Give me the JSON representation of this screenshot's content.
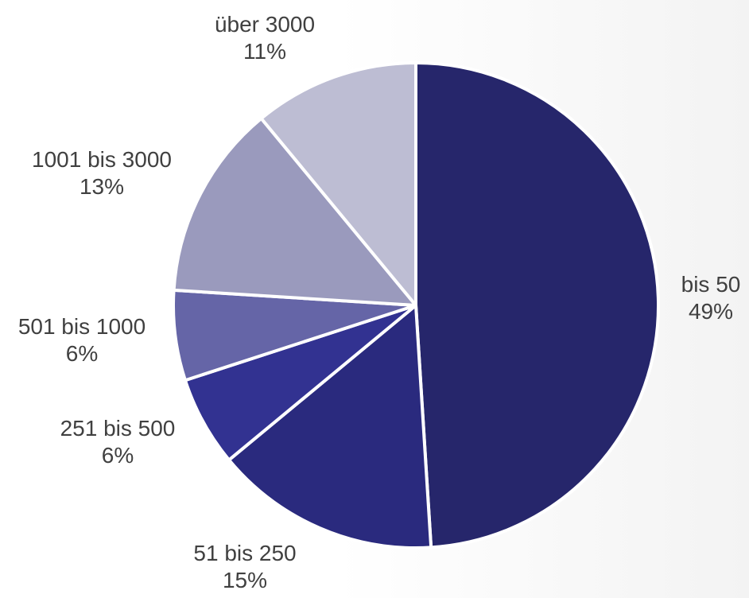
{
  "chart_data": {
    "type": "pie",
    "title": "",
    "start_angle_deg": 0,
    "direction": "clockwise",
    "slices": [
      {
        "label": "bis 50",
        "percent_label": "49%",
        "value": 49,
        "color": "#26266b"
      },
      {
        "label": "51 bis 250",
        "percent_label": "15%",
        "value": 15,
        "color": "#2a2a7e"
      },
      {
        "label": "251 bis 500",
        "percent_label": "6%",
        "value": 6,
        "color": "#323291"
      },
      {
        "label": "501 bis 1000",
        "percent_label": "6%",
        "value": 6,
        "color": "#6565a7"
      },
      {
        "label": "1001 bis 3000",
        "percent_label": "13%",
        "value": 13,
        "color": "#9a9abd"
      },
      {
        "label": "über 3000",
        "percent_label": "11%",
        "value": 11,
        "color": "#bdbdd3"
      }
    ],
    "slice_border_color": "#ffffff",
    "label_color": "#404040"
  }
}
